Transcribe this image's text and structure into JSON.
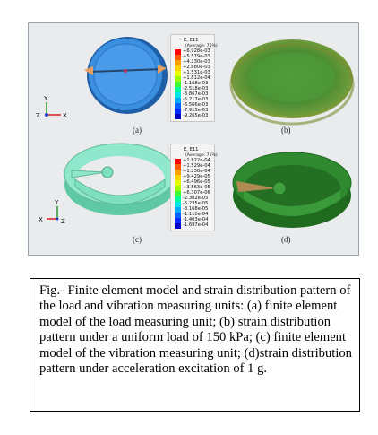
{
  "figure": {
    "panel_a_label": "(a)",
    "panel_b_label": "(b)",
    "panel_c_label": "(c)",
    "panel_d_label": "(d)",
    "triad_top": {
      "y": "Y",
      "z": "Z",
      "x": "X"
    },
    "triad_bottom": {
      "y": "Y",
      "x": "X",
      "z": "Z"
    },
    "legend_b": {
      "title": "E, E11",
      "subtitle": "(Average: 75%)",
      "values": [
        "+6.928e-03",
        "+5.579e-03",
        "+4.230e-03",
        "+2.880e-03",
        "+1.531e-03",
        "+1.812e-04",
        "-1.168e-03",
        "-2.518e-03",
        "-3.867e-03",
        "-5.217e-03",
        "-6.566e-03",
        "-7.915e-03",
        "-9.265e-03"
      ]
    },
    "legend_d": {
      "title": "E, E11",
      "subtitle": "(Average: 75%)",
      "values": [
        "+1.822e-04",
        "+1.529e-04",
        "+1.236e-04",
        "+9.429e-05",
        "+6.496e-05",
        "+3.563e-05",
        "+6.307e-06",
        "-2.302e-05",
        "-5.235e-05",
        "-8.168e-05",
        "-1.110e-04",
        "-1.403e-04",
        "-1.697e-04"
      ]
    },
    "colors": {
      "contour": [
        "#ff0000",
        "#ff5a00",
        "#ffa000",
        "#ffd200",
        "#e6ff00",
        "#9aff00",
        "#3cff3c",
        "#00ff9a",
        "#00e6e6",
        "#00aaff",
        "#0064ff",
        "#0028ff",
        "#0000c8"
      ],
      "load_unit_blue": "#3b8fe0",
      "vibration_unit_teal": "#7fe0c0",
      "strain_green": "#2f8a2f"
    }
  },
  "caption": {
    "text": "Fig.- Finite element model and strain distribution pattern of the load and vibration measuring units: (a) finite element model of the load measuring unit; (b) strain distribution pattern under a uniform load of 150 kPa; (c) finite element model of the vibration measuring unit; (d)strain distribution pattern under acceleration excitation of 1 g."
  }
}
